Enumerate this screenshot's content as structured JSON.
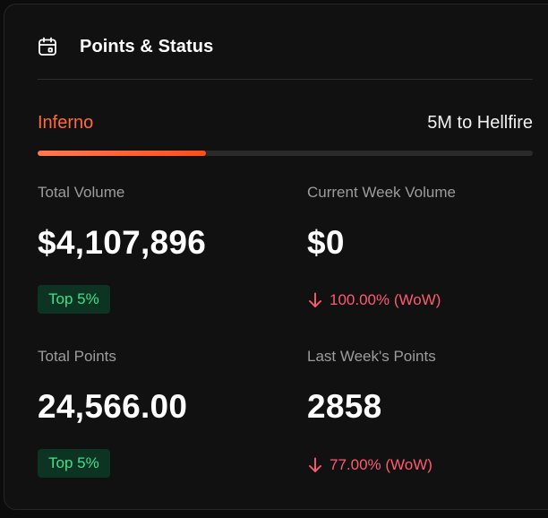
{
  "header": {
    "title": "Points & Status",
    "icon": "calendar-icon"
  },
  "tier": {
    "current": "Inferno",
    "next_label": "5M to Hellfire",
    "progress": 0.34,
    "current_color": "#ff6a3d"
  },
  "stats": {
    "total_volume": {
      "label": "Total Volume",
      "value": "$4,107,896",
      "badge": "Top 5%"
    },
    "current_week_volume": {
      "label": "Current Week Volume",
      "value": "$0",
      "change": "100.00% (WoW)",
      "change_direction": "down",
      "change_icon": "arrow-down-icon"
    },
    "total_points": {
      "label": "Total Points",
      "value": "24,566.00",
      "badge": "Top 5%"
    },
    "last_week_points": {
      "label": "Last Week's Points",
      "value": "2858",
      "change": "77.00% (WoW)",
      "change_direction": "down",
      "change_icon": "arrow-down-icon"
    }
  },
  "colors": {
    "accent": "#ff5722",
    "positive": "#3ee08a",
    "negative": "#ff5a73",
    "background": "#111111"
  }
}
